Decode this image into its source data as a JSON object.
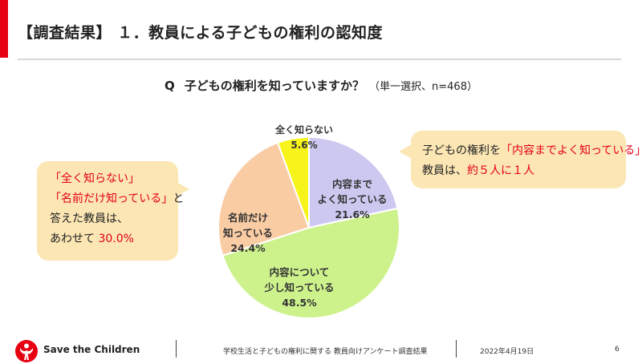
{
  "header": {
    "title": "【調査結果】 １．教員による子どもの権利の認知度",
    "accent_color": "#e60012"
  },
  "question": {
    "mark": "Q",
    "text": "子どもの権利を知っていますか？",
    "note": "（単一選択、n=468）"
  },
  "chart_data": {
    "type": "pie",
    "start_angle_deg": 0,
    "direction": "clockwise",
    "slices": [
      {
        "label_lines": [
          "内容まで",
          "よく知っている"
        ],
        "value": 21.6,
        "value_label": "21.6%",
        "color": "#ccc8f0"
      },
      {
        "label_lines": [
          "内容について",
          "少し知っている"
        ],
        "value": 48.5,
        "value_label": "48.5%",
        "color": "#cdf28c"
      },
      {
        "label_lines": [
          "名前だけ",
          "知っている"
        ],
        "value": 24.4,
        "value_label": "24.4%",
        "color": "#f9cca4"
      },
      {
        "label_lines": [
          "全く知らない"
        ],
        "value": 5.6,
        "value_label": "5.6%",
        "color": "#f7f41c"
      }
    ]
  },
  "callout_left": {
    "line1": "「全く知らない」",
    "line2_red": "「名前だけ知っている」",
    "line2_tail": "と",
    "line3": "答えた教員は、",
    "line4_prefix": "あわせて",
    "line4_red": "30.0%"
  },
  "callout_right": {
    "line1_prefix": "子どもの権利を",
    "line1_red": "「内容までよく知っている」",
    "line2_prefix": "教員は、",
    "line2_red": "約５人に１人"
  },
  "footer": {
    "org_name": "Save the Children",
    "subject": "学校生活と子どもの権利に関する 教員向けアンケート調査結果",
    "date": "2022年4月19日",
    "page": "6"
  }
}
